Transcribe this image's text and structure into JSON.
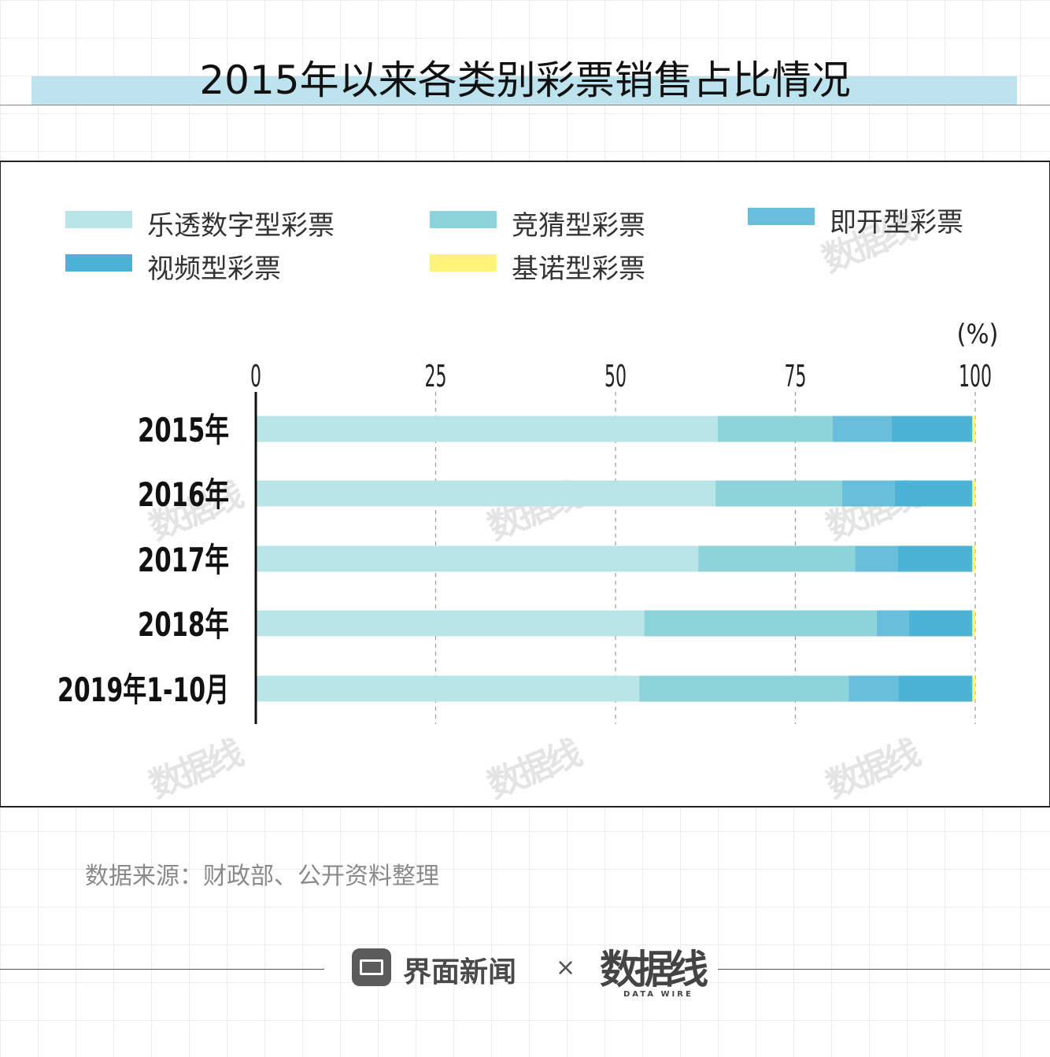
{
  "title": "2015年以来各类别彩票销售占比情况",
  "source": "数据来源：财政部、公开资料整理",
  "footer": {
    "brand": "界面新闻",
    "separator": "×",
    "partner_logo": "数据线",
    "partner_sub": "DATA WIRE"
  },
  "watermark": {
    "logo": "数据线",
    "sub": "DATA WIRE"
  },
  "colors": {
    "title_band": "#bde3ee",
    "lotto": "#b9e4e8",
    "sports": "#8dd4da",
    "instant": "#69bfdb",
    "video": "#4cb3d6",
    "keno": "#fff37a"
  },
  "chart_data": {
    "type": "bar",
    "orientation": "horizontal",
    "stacked": true,
    "unit_label": "(%)",
    "categories": [
      "2015年",
      "2016年",
      "2017年",
      "2018年",
      "2019年1-10月"
    ],
    "xlim": [
      0,
      100
    ],
    "xticks": [
      "0",
      "25",
      "50",
      "75",
      "100"
    ],
    "grid": "vertical dashed",
    "legend_position": "top",
    "series": [
      {
        "name": "乐透数字型彩票",
        "color": "#b9e4e8",
        "values": [
          64.2,
          63.9,
          61.5,
          54.0,
          53.3
        ]
      },
      {
        "name": "竞猜型彩票",
        "color": "#8dd4da",
        "values": [
          16.0,
          17.6,
          21.8,
          32.3,
          29.1
        ]
      },
      {
        "name": "即开型彩票",
        "color": "#69bfdb",
        "values": [
          8.2,
          7.3,
          5.9,
          4.5,
          6.9
        ]
      },
      {
        "name": "视频型彩票",
        "color": "#4cb3d6",
        "values": [
          11.2,
          10.8,
          10.4,
          8.8,
          10.3
        ]
      },
      {
        "name": "基诺型彩票",
        "color": "#fff37a",
        "values": [
          0.4,
          0.4,
          0.4,
          0.4,
          0.4
        ]
      }
    ]
  }
}
